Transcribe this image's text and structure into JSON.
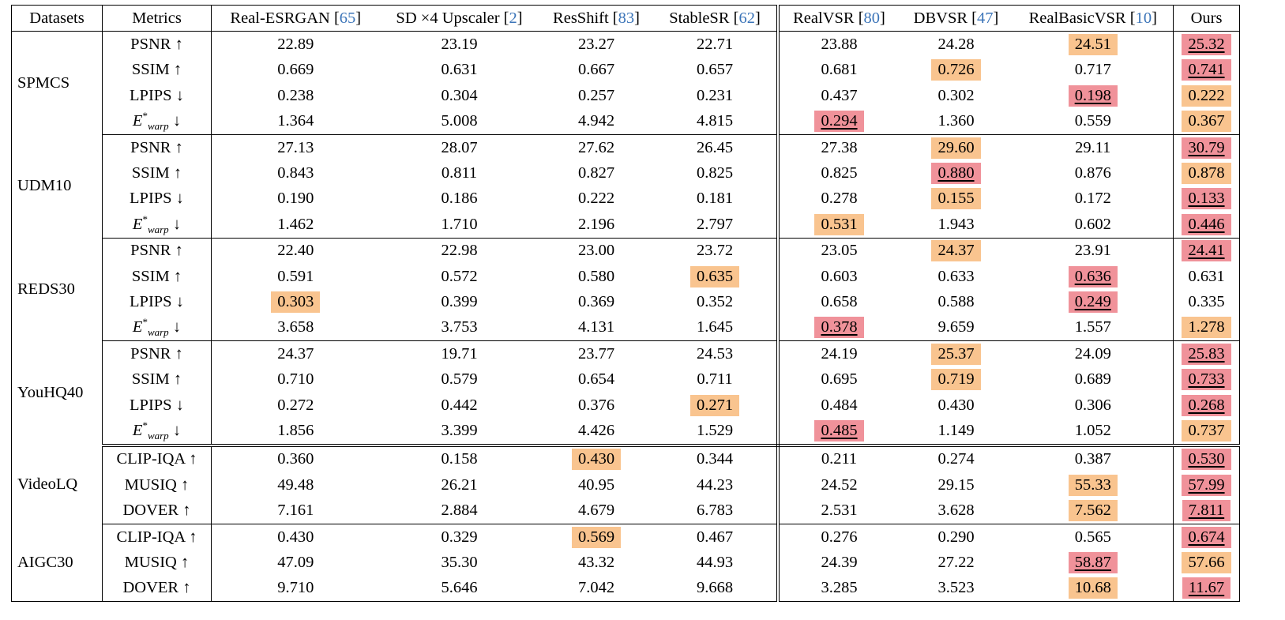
{
  "colors": {
    "best": "#f0929a",
    "second": "#f9c48f",
    "ref": "#3b74b8"
  },
  "header": {
    "datasets": "Datasets",
    "metrics": "Metrics",
    "methods": [
      {
        "name": "Real-ESRGAN",
        "ref": "65"
      },
      {
        "name": "SD ×4 Upscaler",
        "ref": "2"
      },
      {
        "name": "ResShift",
        "ref": "83"
      },
      {
        "name": "StableSR",
        "ref": "62"
      },
      {
        "name": "RealVSR",
        "ref": "80"
      },
      {
        "name": "DBVSR",
        "ref": "47"
      },
      {
        "name": "RealBasicVSR",
        "ref": "10"
      },
      {
        "name": "Ours",
        "ref": ""
      }
    ]
  },
  "groups": [
    {
      "dataset": "SPMCS",
      "rows": [
        {
          "metric": "PSNR",
          "arrow": "↑",
          "values": [
            "22.89",
            "23.19",
            "23.27",
            "22.71",
            "23.88",
            "24.28",
            "24.51",
            "25.32"
          ],
          "marks": [
            "",
            "",
            "",
            "",
            "",
            "",
            "second",
            "best"
          ]
        },
        {
          "metric": "SSIM",
          "arrow": "↑",
          "values": [
            "0.669",
            "0.631",
            "0.667",
            "0.657",
            "0.681",
            "0.726",
            "0.717",
            "0.741"
          ],
          "marks": [
            "",
            "",
            "",
            "",
            "",
            "second",
            "",
            "best"
          ]
        },
        {
          "metric": "LPIPS",
          "arrow": "↓",
          "values": [
            "0.238",
            "0.304",
            "0.257",
            "0.231",
            "0.437",
            "0.302",
            "0.198",
            "0.222"
          ],
          "marks": [
            "",
            "",
            "",
            "",
            "",
            "",
            "best",
            "second"
          ]
        },
        {
          "metric": "E",
          "sup": "*",
          "sub": "warp",
          "arrow": "↓",
          "values": [
            "1.364",
            "5.008",
            "4.942",
            "4.815",
            "0.294",
            "1.360",
            "0.559",
            "0.367"
          ],
          "marks": [
            "",
            "",
            "",
            "",
            "best",
            "",
            "",
            "second"
          ]
        }
      ]
    },
    {
      "dataset": "UDM10",
      "rows": [
        {
          "metric": "PSNR",
          "arrow": "↑",
          "values": [
            "27.13",
            "28.07",
            "27.62",
            "26.45",
            "27.38",
            "29.60",
            "29.11",
            "30.79"
          ],
          "marks": [
            "",
            "",
            "",
            "",
            "",
            "second",
            "",
            "best"
          ]
        },
        {
          "metric": "SSIM",
          "arrow": "↑",
          "values": [
            "0.843",
            "0.811",
            "0.827",
            "0.825",
            "0.825",
            "0.880",
            "0.876",
            "0.878"
          ],
          "marks": [
            "",
            "",
            "",
            "",
            "",
            "best",
            "",
            "second"
          ]
        },
        {
          "metric": "LPIPS",
          "arrow": "↓",
          "values": [
            "0.190",
            "0.186",
            "0.222",
            "0.181",
            "0.278",
            "0.155",
            "0.172",
            "0.133"
          ],
          "marks": [
            "",
            "",
            "",
            "",
            "",
            "second",
            "",
            "best"
          ]
        },
        {
          "metric": "E",
          "sup": "*",
          "sub": "warp",
          "arrow": "↓",
          "values": [
            "1.462",
            "1.710",
            "2.196",
            "2.797",
            "0.531",
            "1.943",
            "0.602",
            "0.446"
          ],
          "marks": [
            "",
            "",
            "",
            "",
            "second",
            "",
            "",
            "best"
          ]
        }
      ]
    },
    {
      "dataset": "REDS30",
      "rows": [
        {
          "metric": "PSNR",
          "arrow": "↑",
          "values": [
            "22.40",
            "22.98",
            "23.00",
            "23.72",
            "23.05",
            "24.37",
            "23.91",
            "24.41"
          ],
          "marks": [
            "",
            "",
            "",
            "",
            "",
            "second",
            "",
            "best"
          ]
        },
        {
          "metric": "SSIM",
          "arrow": "↑",
          "values": [
            "0.591",
            "0.572",
            "0.580",
            "0.635",
            "0.603",
            "0.633",
            "0.636",
            "0.631"
          ],
          "marks": [
            "",
            "",
            "",
            "second",
            "",
            "",
            "best",
            ""
          ]
        },
        {
          "metric": "LPIPS",
          "arrow": "↓",
          "values": [
            "0.303",
            "0.399",
            "0.369",
            "0.352",
            "0.658",
            "0.588",
            "0.249",
            "0.335"
          ],
          "marks": [
            "second",
            "",
            "",
            "",
            "",
            "",
            "best",
            ""
          ]
        },
        {
          "metric": "E",
          "sup": "*",
          "sub": "warp",
          "arrow": "↓",
          "values": [
            "3.658",
            "3.753",
            "4.131",
            "1.645",
            "0.378",
            "9.659",
            "1.557",
            "1.278"
          ],
          "marks": [
            "",
            "",
            "",
            "",
            "best",
            "",
            "",
            "second"
          ]
        }
      ]
    },
    {
      "dataset": "YouHQ40",
      "rows": [
        {
          "metric": "PSNR",
          "arrow": "↑",
          "values": [
            "24.37",
            "19.71",
            "23.77",
            "24.53",
            "24.19",
            "25.37",
            "24.09",
            "25.83"
          ],
          "marks": [
            "",
            "",
            "",
            "",
            "",
            "second",
            "",
            "best"
          ]
        },
        {
          "metric": "SSIM",
          "arrow": "↑",
          "values": [
            "0.710",
            "0.579",
            "0.654",
            "0.711",
            "0.695",
            "0.719",
            "0.689",
            "0.733"
          ],
          "marks": [
            "",
            "",
            "",
            "",
            "",
            "second",
            "",
            "best"
          ]
        },
        {
          "metric": "LPIPS",
          "arrow": "↓",
          "values": [
            "0.272",
            "0.442",
            "0.376",
            "0.271",
            "0.484",
            "0.430",
            "0.306",
            "0.268"
          ],
          "marks": [
            "",
            "",
            "",
            "second",
            "",
            "",
            "",
            "best"
          ]
        },
        {
          "metric": "E",
          "sup": "*",
          "sub": "warp",
          "arrow": "↓",
          "values": [
            "1.856",
            "3.399",
            "4.426",
            "1.529",
            "0.485",
            "1.149",
            "1.052",
            "0.737"
          ],
          "marks": [
            "",
            "",
            "",
            "",
            "best",
            "",
            "",
            "second"
          ]
        }
      ]
    },
    {
      "dataset": "VideoLQ",
      "rows": [
        {
          "metric": "CLIP-IQA",
          "arrow": "↑",
          "values": [
            "0.360",
            "0.158",
            "0.430",
            "0.344",
            "0.211",
            "0.274",
            "0.387",
            "0.530"
          ],
          "marks": [
            "",
            "",
            "second",
            "",
            "",
            "",
            "",
            "best"
          ]
        },
        {
          "metric": "MUSIQ",
          "arrow": "↑",
          "values": [
            "49.48",
            "26.21",
            "40.95",
            "44.23",
            "24.52",
            "29.15",
            "55.33",
            "57.99"
          ],
          "marks": [
            "",
            "",
            "",
            "",
            "",
            "",
            "second",
            "best"
          ]
        },
        {
          "metric": "DOVER",
          "arrow": "↑",
          "values": [
            "7.161",
            "2.884",
            "4.679",
            "6.783",
            "2.531",
            "3.628",
            "7.562",
            "7.811"
          ],
          "marks": [
            "",
            "",
            "",
            "",
            "",
            "",
            "second",
            "best"
          ]
        }
      ]
    },
    {
      "dataset": "AIGC30",
      "rows": [
        {
          "metric": "CLIP-IQA",
          "arrow": "↑",
          "values": [
            "0.430",
            "0.329",
            "0.569",
            "0.467",
            "0.276",
            "0.290",
            "0.565",
            "0.674"
          ],
          "marks": [
            "",
            "",
            "second",
            "",
            "",
            "",
            "",
            "best"
          ]
        },
        {
          "metric": "MUSIQ",
          "arrow": "↑",
          "values": [
            "47.09",
            "35.30",
            "43.32",
            "44.93",
            "24.39",
            "27.22",
            "58.87",
            "57.66"
          ],
          "marks": [
            "",
            "",
            "",
            "",
            "",
            "",
            "best",
            "second"
          ]
        },
        {
          "metric": "DOVER",
          "arrow": "↑",
          "values": [
            "9.710",
            "5.646",
            "7.042",
            "9.668",
            "3.285",
            "3.523",
            "10.68",
            "11.67"
          ],
          "marks": [
            "",
            "",
            "",
            "",
            "",
            "",
            "second",
            "best"
          ]
        }
      ]
    }
  ]
}
